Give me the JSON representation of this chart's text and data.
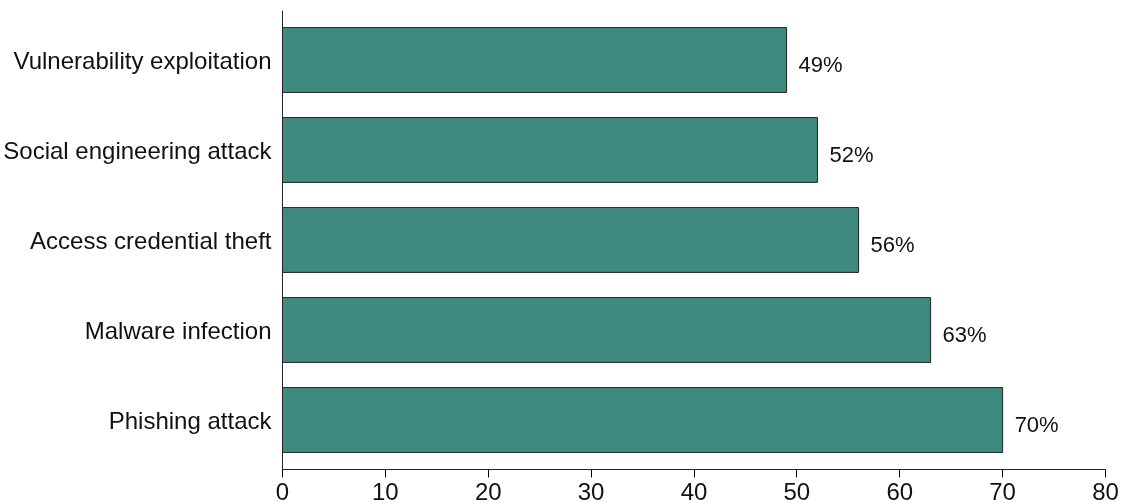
{
  "chart_data": {
    "type": "bar",
    "orientation": "horizontal",
    "categories": [
      "Vulnerability exploitation",
      "Social engineering attack",
      "Access credential theft",
      "Malware infection",
      "Phishing attack"
    ],
    "values": [
      49,
      52,
      56,
      63,
      70
    ],
    "value_labels": [
      "49%",
      "52%",
      "56%",
      "63%",
      "70%"
    ],
    "color": "#3f8a7f",
    "xlim": [
      0,
      80
    ],
    "xticks": [
      0,
      10,
      20,
      30,
      40,
      50,
      60,
      70,
      80
    ],
    "grid": false
  }
}
